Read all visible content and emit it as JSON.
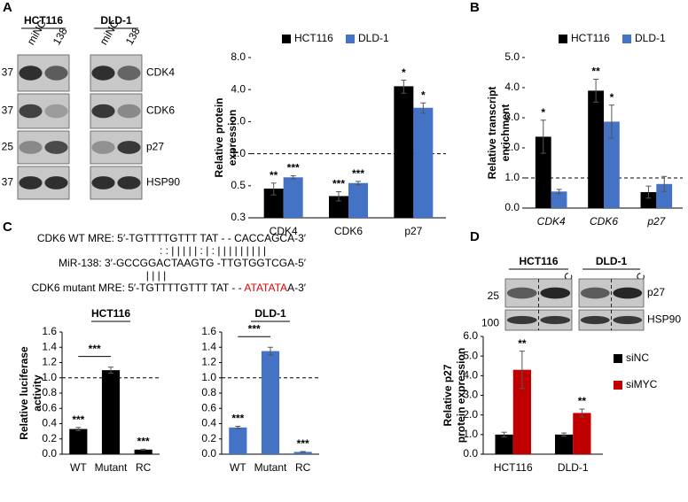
{
  "panel_labels": [
    "A",
    "B",
    "C",
    "D"
  ],
  "blot_a": {
    "cell_lines": [
      "HCT116",
      "DLD-1"
    ],
    "lanes": [
      "miNC",
      "138"
    ],
    "markers": [
      "37",
      "37",
      "25",
      "37"
    ],
    "proteins": [
      "CDK4",
      "CDK6",
      "p27",
      "HSP90"
    ]
  },
  "blot_d": {
    "cell_lines": [
      "HCT116",
      "DLD-1"
    ],
    "lanes": [
      "siNC",
      "siMYC"
    ],
    "markers": [
      "25",
      "100"
    ],
    "proteins": [
      "p27",
      "HSP90"
    ]
  },
  "sequences": {
    "wt": "CDK6 WT MRE: 5′-TGTTTTGTTT TAT  - - CACCAGCA-3′",
    "pairing1": ": :  |  |    |  |  | :   | : |  | | | | | | | |",
    "mir": "MiR-138: 3′-GCCGGACTAAGTG -TTGTGGTCGA-5′",
    "pairing2": "|  |  |  |",
    "mutant": {
      "prefix": "CDK6 mutant MRE: 5′-TGTTTTGTTT TAT  - - ",
      "mutation": "ATATATA",
      "suffix": "A-3′"
    }
  },
  "chart_data": [
    {
      "type": "bar",
      "log_scale": true,
      "ylabel": [
        "Relative protein",
        "expression"
      ],
      "categories": [
        "CDK4",
        "CDK6",
        "p27"
      ],
      "series": [
        {
          "name": "HCT116",
          "color": "#000000",
          "values": [
            0.47,
            0.4,
            4.3
          ],
          "errors": [
            0.06,
            0.04,
            0.6
          ],
          "significance": [
            "**",
            "***",
            "*"
          ]
        },
        {
          "name": "DLD-1",
          "color": "#4472c4",
          "values": [
            0.6,
            0.53,
            2.7
          ],
          "errors": [
            0.02,
            0.02,
            0.3
          ],
          "significance": [
            "***",
            "***",
            "*"
          ]
        }
      ],
      "ylim": [
        0.25,
        8
      ],
      "yticks": [
        {
          "value": 0.25,
          "label": "0.3"
        },
        0.5,
        {
          "value": 1,
          "label": "1.0"
        },
        {
          "value": 2,
          "label": "2.0"
        },
        {
          "value": 4,
          "label": "4.0"
        },
        {
          "value": 8,
          "label": "8.0"
        }
      ],
      "reference_line": 1,
      "legend": "top"
    },
    {
      "type": "bar",
      "ylabel": [
        "Relative transcript",
        "enrichment"
      ],
      "category_style": "italic",
      "categories": [
        "CDK4",
        "CDK6",
        "p27"
      ],
      "series": [
        {
          "name": "HCT116",
          "color": "#000000",
          "values": [
            2.37,
            3.9,
            0.53
          ],
          "errors": [
            0.55,
            0.38,
            0.2
          ],
          "significance": [
            "*",
            "**",
            null
          ]
        },
        {
          "name": "DLD-1",
          "color": "#4472c4",
          "values": [
            0.55,
            2.87,
            0.8
          ],
          "errors": [
            0.07,
            0.55,
            0.25
          ],
          "significance": [
            null,
            "*",
            null
          ]
        }
      ],
      "ylim": [
        0,
        5
      ],
      "yticks": [
        {
          "value": 0,
          "label": "0.0"
        },
        {
          "value": 1,
          "label": "1.0"
        },
        {
          "value": 2,
          "label": "2.0"
        },
        {
          "value": 3,
          "label": "3.0"
        },
        {
          "value": 4,
          "label": "4.0"
        },
        {
          "value": 5,
          "label": "5.0"
        }
      ],
      "reference_line": 1,
      "legend": "top"
    },
    {
      "type": "bar",
      "title": "HCT116",
      "ylabel": [
        "Relative luciferase",
        "activity"
      ],
      "categories": [
        "WT",
        "Mutant",
        "RC"
      ],
      "series": [
        {
          "color": "#000000",
          "values": [
            0.33,
            1.1,
            0.06
          ],
          "errors": [
            0.02,
            0.04,
            0.005
          ],
          "significance": [
            "***",
            null,
            "***"
          ]
        }
      ],
      "bracket_label": "***",
      "ylim": [
        0,
        1.6
      ],
      "yticks": [
        {
          "value": 0,
          "label": "0.0"
        },
        0.2,
        0.4,
        0.6,
        0.8,
        {
          "value": 1,
          "label": "1.0"
        },
        1.2,
        1.4,
        1.6
      ],
      "reference_line": 1
    },
    {
      "type": "bar",
      "title": "DLD-1",
      "categories": [
        "WT",
        "Mutant",
        "RC"
      ],
      "series": [
        {
          "color": "#4472c4",
          "values": [
            0.35,
            1.35,
            0.03
          ],
          "errors": [
            0.015,
            0.05,
            0.005
          ],
          "significance": [
            "***",
            null,
            "***"
          ]
        }
      ],
      "bracket_label": "***",
      "ylim": [
        0,
        1.6
      ],
      "yticks": [
        {
          "value": 0,
          "label": "0.0"
        },
        0.2,
        0.4,
        0.6,
        0.8,
        {
          "value": 1,
          "label": "1.0"
        },
        1.2,
        1.4,
        1.6
      ],
      "reference_line": 1
    },
    {
      "type": "bar",
      "ylabel": [
        "Relative p27",
        "protein expression"
      ],
      "categories": [
        "HCT116",
        "DLD-1"
      ],
      "series": [
        {
          "name": "siNC",
          "color": "#000000",
          "values": [
            1.0,
            1.0
          ],
          "errors": [
            0.12,
            0.08
          ],
          "significance": [
            null,
            null
          ]
        },
        {
          "name": "siMYC",
          "color": "#c00000",
          "values": [
            4.3,
            2.1
          ],
          "errors": [
            0.95,
            0.2
          ],
          "significance": [
            "**",
            "**"
          ]
        }
      ],
      "ylim": [
        0,
        6
      ],
      "yticks": [
        {
          "value": 0,
          "label": "0.0"
        },
        {
          "value": 1,
          "label": "1.0"
        },
        {
          "value": 2,
          "label": "2.0"
        },
        {
          "value": 3,
          "label": "3.0"
        },
        {
          "value": 4,
          "label": "4.0"
        },
        {
          "value": 5,
          "label": "5.0"
        },
        {
          "value": 6,
          "label": "6.0"
        }
      ],
      "legend": "right"
    }
  ]
}
